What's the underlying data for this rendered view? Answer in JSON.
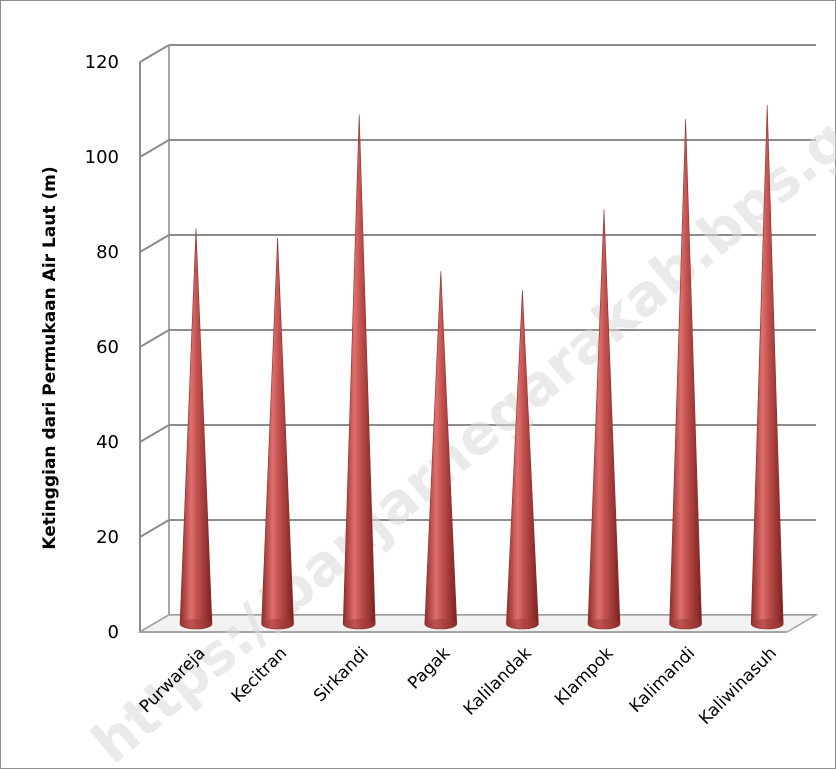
{
  "chart_data": {
    "type": "bar",
    "shape": "cone-3d",
    "categories": [
      "Purwareja",
      "Kecitran",
      "Sirkandi",
      "Pagak",
      "Kalilandak",
      "Klampok",
      "Kalimandi",
      "Kaliwinasuh"
    ],
    "values": [
      83,
      81,
      107,
      74,
      70,
      87,
      106,
      109
    ],
    "ylabel": "Ketinggian dari Permukaan Air Laut (m)",
    "xlabel": "",
    "ylim": [
      0,
      120
    ],
    "yticks": [
      0,
      20,
      40,
      60,
      80,
      100,
      120
    ],
    "grid": true,
    "colors": {
      "bar": "#c0504d",
      "bar_highlight": "#f28b88",
      "bar_shadow": "#7a2120",
      "grid": "#8c8c8c"
    }
  },
  "watermark": "https://banjarnegarakab.bps.go.id"
}
